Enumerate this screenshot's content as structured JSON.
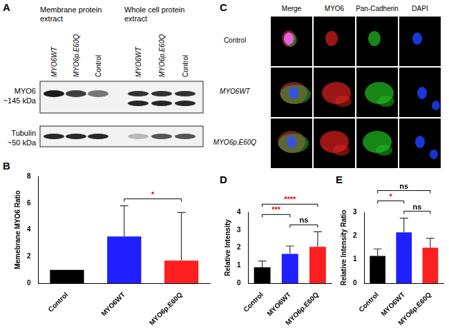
{
  "blot": {
    "panel": "A",
    "groups": [
      {
        "label": "Membrane protein extract",
        "lanes": [
          "MYO6WT",
          "MYO6p.E60Q",
          "Control"
        ]
      },
      {
        "label": "Whole cell protein extract",
        "lanes": [
          "MYO6WT",
          "MYO6p.E60Q",
          "Control"
        ]
      }
    ],
    "rows": [
      {
        "label": "MYO6",
        "size": "~145 kDa"
      },
      {
        "label": "Tubulin",
        "size": "~50 kDa"
      }
    ]
  },
  "microscopy": {
    "panel": "C",
    "columns": [
      "Merge",
      "MYO6",
      "Pan-Cadherin",
      "DAPI"
    ],
    "rows": [
      "Control",
      "MYO6WT",
      "MYO6p.E60Q"
    ]
  },
  "chart_data": [
    {
      "panel": "B",
      "type": "bar",
      "y_label": "Memebrane MYO6 Ratio",
      "categories": [
        "Control",
        "MYO6WT",
        "MYO6p.E60Q"
      ],
      "values": [
        1,
        3.5,
        1.7
      ],
      "errors": [
        0,
        2.3,
        3.6
      ],
      "colors": [
        "#000000",
        "#1f1fff",
        "#ff1f1f"
      ],
      "ylim": [
        0,
        8
      ],
      "yticks": [
        0,
        2,
        4,
        6,
        8
      ],
      "grid": false,
      "comparisons": [
        {
          "between": [
            "MYO6WT",
            "MYO6p.E60Q"
          ],
          "label": "*",
          "color": "#e8000b"
        }
      ]
    },
    {
      "panel": "D",
      "type": "bar",
      "y_label": "Relative Intensity",
      "categories": [
        "Control",
        "MYO6WT",
        "MYO6p.E60Q"
      ],
      "values": [
        0.9,
        1.65,
        2.05
      ],
      "errors": [
        0.35,
        0.45,
        0.85
      ],
      "colors": [
        "#000000",
        "#1f1fff",
        "#ff1f1f"
      ],
      "ylim": [
        0,
        4
      ],
      "yticks": [
        0,
        1,
        2,
        3,
        4
      ],
      "grid": false,
      "comparisons": [
        {
          "between": [
            "MYO6WT",
            "MYO6p.E60Q"
          ],
          "label": "ns",
          "color": "#000000"
        },
        {
          "between": [
            "Control",
            "MYO6WT"
          ],
          "label": "***",
          "color": "#e8000b"
        },
        {
          "between": [
            "Control",
            "MYO6p.E60Q"
          ],
          "label": "****",
          "color": "#e8000b"
        }
      ]
    },
    {
      "panel": "E",
      "type": "bar",
      "y_label": "Relative Intensity Ratio",
      "categories": [
        "Control",
        "MYO6WT",
        "MYO6p.E60Q"
      ],
      "values": [
        1.15,
        2.15,
        1.5
      ],
      "errors": [
        0.3,
        0.6,
        0.4
      ],
      "colors": [
        "#000000",
        "#1f1fff",
        "#ff1f1f"
      ],
      "ylim": [
        0,
        3
      ],
      "yticks": [
        0,
        1,
        2,
        3
      ],
      "grid": false,
      "comparisons": [
        {
          "between": [
            "MYO6WT",
            "MYO6p.E60Q"
          ],
          "label": "ns",
          "color": "#000000"
        },
        {
          "between": [
            "Control",
            "MYO6WT"
          ],
          "label": "*",
          "color": "#e8000b"
        },
        {
          "between": [
            "Control",
            "MYO6p.E60Q"
          ],
          "label": "ns",
          "color": "#000000"
        }
      ]
    }
  ]
}
